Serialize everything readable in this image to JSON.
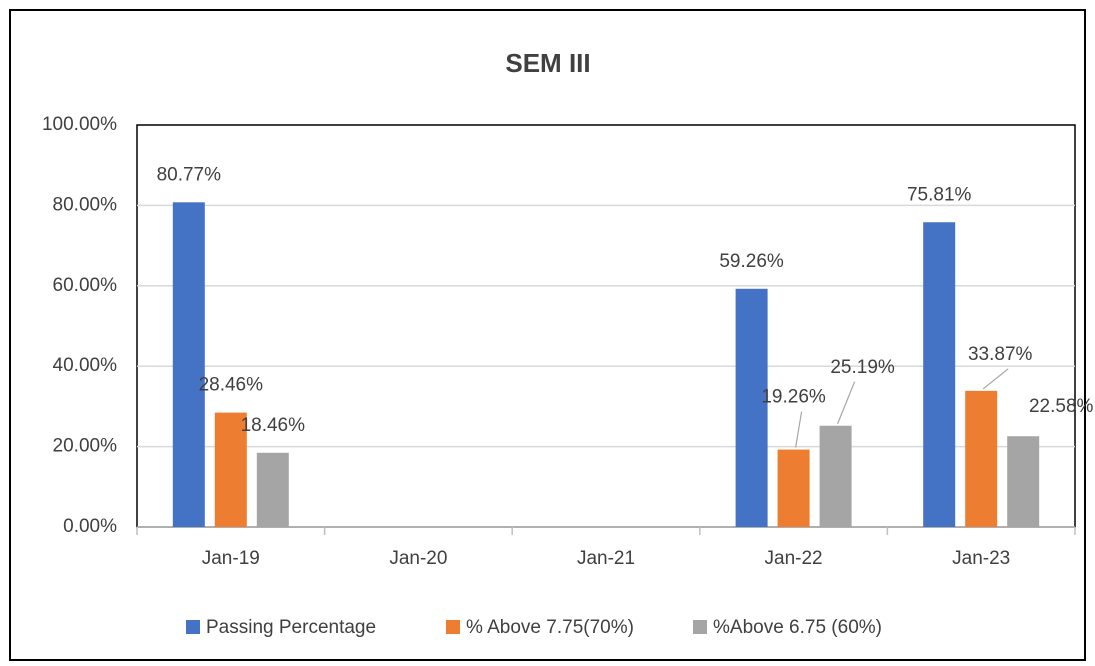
{
  "chart_data": {
    "type": "bar",
    "title": "SEM III",
    "categories": [
      "Jan-19",
      "Jan-20",
      "Jan-21",
      "Jan-22",
      "Jan-23"
    ],
    "series": [
      {
        "name": "Passing Percentage",
        "color": "#4472c4",
        "values": [
          80.77,
          null,
          null,
          59.26,
          75.81
        ],
        "value_labels": [
          "80.77%",
          null,
          null,
          "59.26%",
          "75.81%"
        ]
      },
      {
        "name": "% Above 7.75(70%)",
        "color": "#ed7d31",
        "values": [
          28.46,
          null,
          null,
          19.26,
          33.87
        ],
        "value_labels": [
          "28.46%",
          null,
          null,
          "19.26%",
          "33.87%"
        ]
      },
      {
        "name": "%Above 6.75 (60%)",
        "color": "#a5a5a5",
        "values": [
          18.46,
          null,
          null,
          25.19,
          22.58
        ],
        "value_labels": [
          "18.46%",
          null,
          null,
          "25.19%",
          "22.58%"
        ]
      }
    ],
    "ylim": [
      0,
      100
    ],
    "yticks": [
      {
        "value": 0,
        "label": "0.00%"
      },
      {
        "value": 20,
        "label": "20.00%"
      },
      {
        "value": 40,
        "label": "40.00%"
      },
      {
        "value": 60,
        "label": "60.00%"
      },
      {
        "value": 80,
        "label": "80.00%"
      },
      {
        "value": 100,
        "label": "100.00%"
      }
    ],
    "grid": true,
    "legend": "bottom"
  }
}
